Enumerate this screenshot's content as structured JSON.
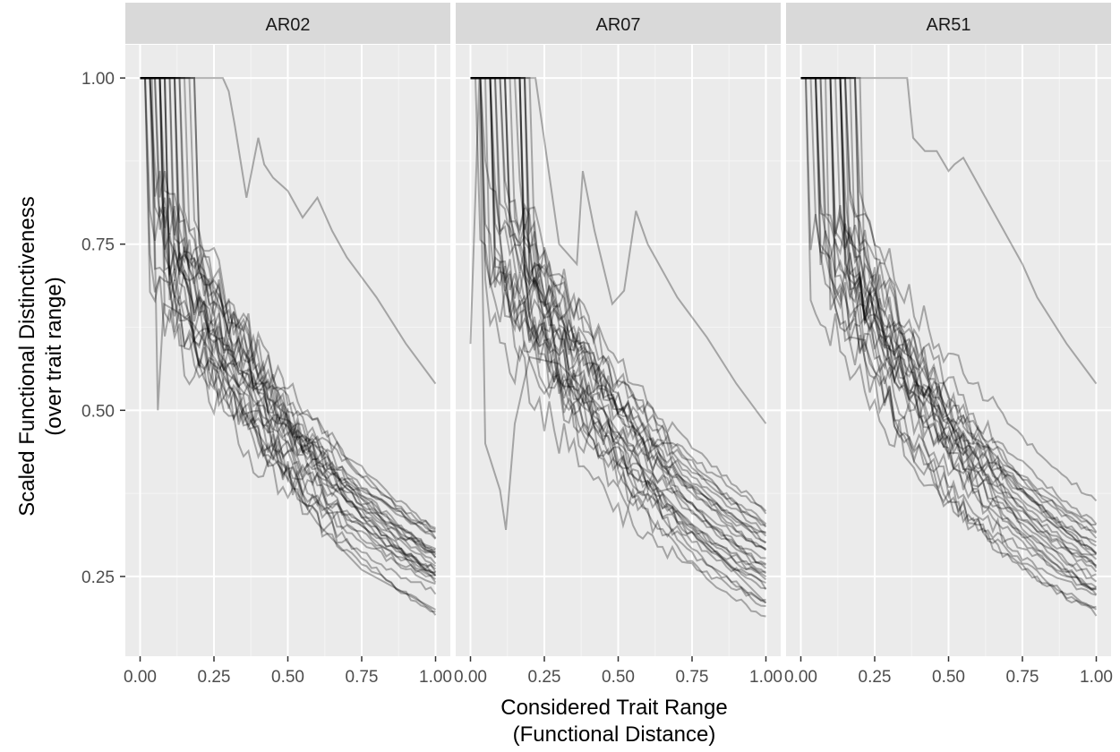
{
  "chart_data": {
    "type": "line",
    "facets": [
      {
        "name": "AR02",
        "seed": 2
      },
      {
        "name": "AR07",
        "seed": 7
      },
      {
        "name": "AR51",
        "seed": 51
      }
    ],
    "xlabel": [
      "Considered Trait Range",
      "(Functional Distance)"
    ],
    "ylabel": [
      "Scaled Functional Distinctiveness",
      "(over trait range)"
    ],
    "xlim": [
      -0.05,
      1.05
    ],
    "ylim": [
      0.13,
      1.05
    ],
    "x_ticks": [
      0,
      0.25,
      0.5,
      0.75,
      1
    ],
    "x_tick_labels": [
      "0.00",
      "0.25",
      "0.50",
      "0.75",
      "1.00"
    ],
    "y_ticks": [
      0.25,
      0.5,
      0.75,
      1
    ],
    "y_tick_labels": [
      "0.25",
      "0.50",
      "0.75",
      "1.00"
    ],
    "grid": true,
    "series_per_facet": 28,
    "line_color": "#000000",
    "line_alpha": 0.3,
    "panel_bg": "#ebebeb",
    "strip_bg": "#d9d9d9",
    "grid_major_color": "#ffffff",
    "grid_minor_color": "#f5f5f5",
    "annotated_series": {
      "AR02": [
        {
          "x": [
            0,
            0.06,
            0.25,
            0.28,
            0.3,
            0.32,
            0.36,
            0.4,
            0.42,
            0.45,
            0.5,
            0.55,
            0.6,
            0.65,
            0.7,
            0.75,
            0.8,
            0.9,
            1.0
          ],
          "y": [
            1,
            1,
            1,
            1,
            0.98,
            0.93,
            0.82,
            0.91,
            0.87,
            0.85,
            0.83,
            0.79,
            0.82,
            0.77,
            0.73,
            0.7,
            0.67,
            0.6,
            0.54
          ]
        },
        {
          "x": [
            0,
            0.04,
            0.06,
            0.08,
            0.12,
            0.18,
            0.25,
            0.35,
            0.45,
            0.6,
            0.75,
            1.0
          ],
          "y": [
            1,
            1,
            0.5,
            0.66,
            0.65,
            0.63,
            0.58,
            0.5,
            0.43,
            0.33,
            0.26,
            0.2
          ]
        }
      ],
      "AR07": [
        {
          "x": [
            0,
            0.1,
            0.22,
            0.3,
            0.36,
            0.38,
            0.42,
            0.48,
            0.52,
            0.56,
            0.6,
            0.7,
            0.8,
            0.9,
            1.0
          ],
          "y": [
            1,
            1,
            1,
            0.75,
            0.72,
            0.86,
            0.77,
            0.66,
            0.68,
            0.8,
            0.75,
            0.67,
            0.61,
            0.54,
            0.48
          ]
        },
        {
          "x": [
            0,
            0.03,
            0.05,
            0.1,
            0.12,
            0.15,
            0.2,
            0.3,
            0.45,
            0.6,
            0.8,
            1.0
          ],
          "y": [
            0.6,
            1,
            0.45,
            0.38,
            0.32,
            0.48,
            0.58,
            0.57,
            0.5,
            0.4,
            0.3,
            0.21
          ]
        }
      ],
      "AR51": [
        {
          "x": [
            0,
            0.1,
            0.22,
            0.36,
            0.38,
            0.42,
            0.46,
            0.5,
            0.52,
            0.55,
            0.6,
            0.65,
            0.7,
            0.75,
            0.8,
            0.9,
            1.0
          ],
          "y": [
            1,
            1,
            1,
            1,
            0.91,
            0.89,
            0.89,
            0.86,
            0.87,
            0.88,
            0.84,
            0.8,
            0.76,
            0.72,
            0.67,
            0.6,
            0.54
          ]
        }
      ]
    }
  }
}
